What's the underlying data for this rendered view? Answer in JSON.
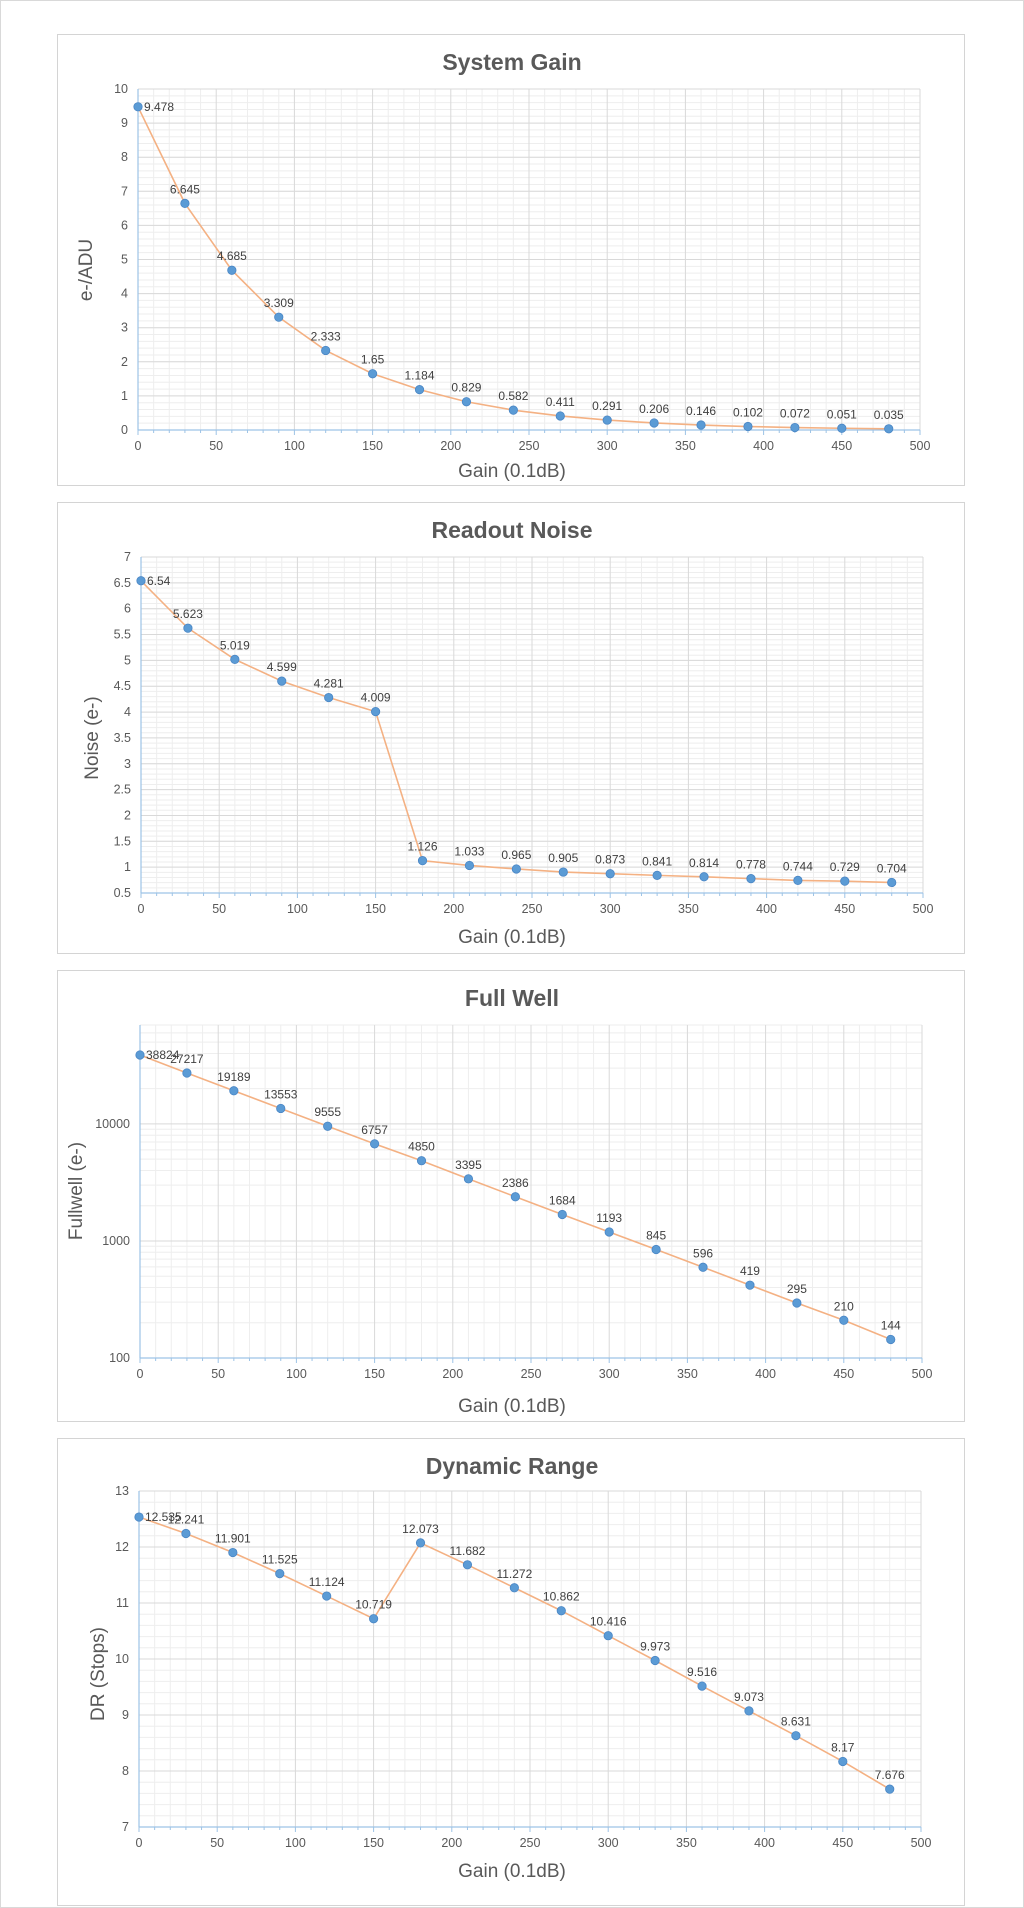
{
  "chart_data": [
    {
      "type": "line",
      "title": "System Gain",
      "xlabel": "Gain (0.1dB)",
      "ylabel": "e-/ADU",
      "xlim": [
        0,
        500
      ],
      "ylim": [
        0,
        10
      ],
      "y_scale": "linear",
      "x_ticks": [
        0,
        50,
        100,
        150,
        200,
        250,
        300,
        350,
        400,
        450,
        500
      ],
      "y_ticks": [
        "0",
        "1",
        "2",
        "3",
        "4",
        "5",
        "6",
        "7",
        "8",
        "9",
        "10"
      ],
      "grid": true,
      "series": [
        {
          "x": [
            0,
            30,
            60,
            90,
            120,
            150,
            180,
            210,
            240,
            270,
            300,
            330,
            360,
            390,
            420,
            450,
            480
          ],
          "values": [
            9.478,
            6.645,
            4.685,
            3.309,
            2.333,
            1.65,
            1.184,
            0.829,
            0.582,
            0.411,
            0.291,
            0.206,
            0.146,
            0.102,
            0.072,
            0.051,
            0.035
          ],
          "labels": [
            "9.478",
            "6.645",
            "4.685",
            "3.309",
            "2.333",
            "1.65",
            "1.184",
            "0.829",
            "0.582",
            "0.411",
            "0.291",
            "0.206",
            "0.146",
            "0.102",
            "0.072",
            "0.051",
            "0.035"
          ]
        }
      ],
      "colors": {
        "line": "#f4b183",
        "marker": "#5b9bd5",
        "axis": "#9dc3e6"
      }
    },
    {
      "type": "line",
      "title": "Readout Noise",
      "xlabel": "Gain (0.1dB)",
      "ylabel": "Noise (e-)",
      "xlim": [
        0,
        500
      ],
      "ylim": [
        0.5,
        7
      ],
      "y_scale": "linear",
      "x_ticks": [
        0,
        50,
        100,
        150,
        200,
        250,
        300,
        350,
        400,
        450,
        500
      ],
      "y_ticks": [
        "0.5",
        "1",
        "1.5",
        "2",
        "2.5",
        "3",
        "3.5",
        "4",
        "4.5",
        "5",
        "5.5",
        "6",
        "6.5",
        "7"
      ],
      "grid": true,
      "series": [
        {
          "x": [
            0,
            30,
            60,
            90,
            120,
            150,
            180,
            210,
            240,
            270,
            300,
            330,
            360,
            390,
            420,
            450,
            480
          ],
          "values": [
            6.54,
            5.623,
            5.019,
            4.599,
            4.281,
            4.009,
            1.126,
            1.033,
            0.965,
            0.905,
            0.873,
            0.841,
            0.814,
            0.778,
            0.744,
            0.729,
            0.704
          ],
          "labels": [
            "6.54",
            "5.623",
            "5.019",
            "4.599",
            "4.281",
            "4.009",
            "1.126",
            "1.033",
            "0.965",
            "0.905",
            "0.873",
            "0.841",
            "0.814",
            "0.778",
            "0.744",
            "0.729",
            "0.704"
          ]
        }
      ],
      "colors": {
        "line": "#f4b183",
        "marker": "#5b9bd5",
        "axis": "#9dc3e6"
      }
    },
    {
      "type": "line",
      "title": "Full Well",
      "xlabel": "Gain (0.1dB)",
      "ylabel": "Fullwell (e-)",
      "xlim": [
        0,
        500
      ],
      "ylim": [
        100,
        70000
      ],
      "y_scale": "log",
      "x_ticks": [
        0,
        50,
        100,
        150,
        200,
        250,
        300,
        350,
        400,
        450,
        500
      ],
      "y_ticks": [
        "100",
        "1000",
        "10000"
      ],
      "grid": true,
      "series": [
        {
          "x": [
            0,
            30,
            60,
            90,
            120,
            150,
            180,
            210,
            240,
            270,
            300,
            330,
            360,
            390,
            420,
            450,
            480
          ],
          "values": [
            38824,
            27217,
            19189,
            13553,
            9555,
            6757,
            4850,
            3395,
            2386,
            1684,
            1193,
            845,
            596,
            419,
            295,
            210,
            144
          ],
          "labels": [
            "38824",
            "27217",
            "19189",
            "13553",
            "9555",
            "6757",
            "4850",
            "3395",
            "2386",
            "1684",
            "1193",
            "845",
            "596",
            "419",
            "295",
            "210",
            "144"
          ]
        }
      ],
      "colors": {
        "line": "#f4b183",
        "marker": "#5b9bd5",
        "axis": "#9dc3e6"
      }
    },
    {
      "type": "line",
      "title": "Dynamic Range",
      "xlabel": "Gain (0.1dB)",
      "ylabel": "DR (Stops)",
      "xlim": [
        0,
        500
      ],
      "ylim": [
        7,
        13
      ],
      "y_scale": "linear",
      "x_ticks": [
        0,
        50,
        100,
        150,
        200,
        250,
        300,
        350,
        400,
        450,
        500
      ],
      "y_ticks": [
        "7",
        "8",
        "9",
        "10",
        "11",
        "12",
        "13"
      ],
      "grid": true,
      "series": [
        {
          "x": [
            0,
            30,
            60,
            90,
            120,
            150,
            180,
            210,
            240,
            270,
            300,
            330,
            360,
            390,
            420,
            450,
            480
          ],
          "values": [
            12.535,
            12.241,
            11.901,
            11.525,
            11.124,
            10.719,
            12.073,
            11.682,
            11.272,
            10.862,
            10.416,
            9.973,
            9.516,
            9.073,
            8.631,
            8.17,
            7.676
          ],
          "labels": [
            "12.535",
            "12.241",
            "11.901",
            "11.525",
            "11.124",
            "10.719",
            "12.073",
            "11.682",
            "11.272",
            "10.862",
            "10.416",
            "9.973",
            "9.516",
            "9.073",
            "8.631",
            "8.17",
            "7.676"
          ]
        }
      ],
      "colors": {
        "line": "#f4b183",
        "marker": "#5b9bd5",
        "axis": "#9dc3e6"
      }
    }
  ]
}
